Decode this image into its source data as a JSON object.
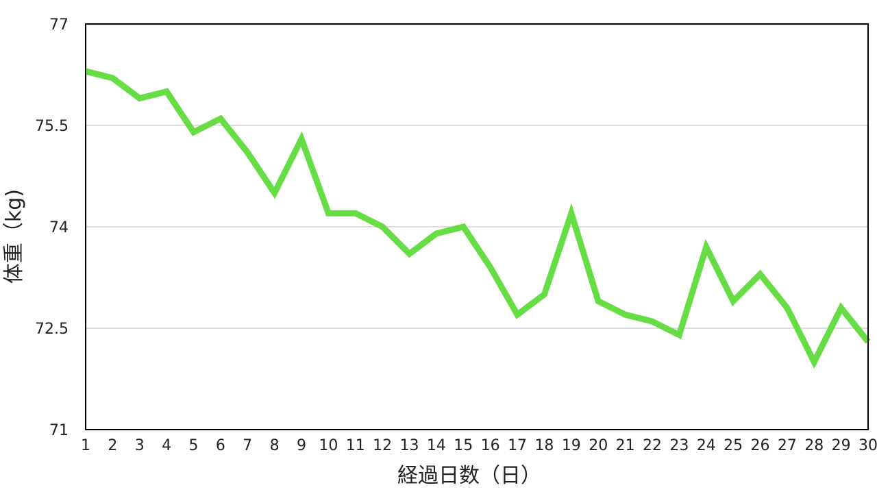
{
  "chart_data": {
    "type": "line",
    "title": "",
    "xlabel": "経過日数（日）",
    "ylabel": "体重（kg)",
    "x": [
      1,
      2,
      3,
      4,
      5,
      6,
      7,
      8,
      9,
      10,
      11,
      12,
      13,
      14,
      15,
      16,
      17,
      18,
      19,
      20,
      21,
      22,
      23,
      24,
      25,
      26,
      27,
      28,
      29,
      30
    ],
    "x_tick_labels": [
      "1",
      "2",
      "3",
      "4",
      "5",
      "6",
      "7",
      "8",
      "9",
      "10",
      "11",
      "12",
      "13",
      "14",
      "15",
      "16",
      "17",
      "18",
      "19",
      "20",
      "21",
      "22",
      "23",
      "24",
      "25",
      "26",
      "27",
      "28",
      "29",
      "30"
    ],
    "ylim": [
      71,
      77
    ],
    "y_ticks": [
      71,
      72.5,
      74,
      75.5,
      77
    ],
    "y_tick_labels": [
      "71",
      "72.5",
      "74",
      "75.5",
      "77"
    ],
    "grid": "horizontal",
    "legend": "none",
    "series": [
      {
        "color": "#66dd44",
        "values": [
          76.3,
          76.2,
          75.9,
          76.0,
          75.4,
          75.6,
          75.1,
          74.5,
          75.3,
          74.2,
          74.2,
          74.0,
          73.6,
          73.9,
          74.0,
          73.4,
          72.7,
          73.0,
          74.2,
          72.9,
          72.7,
          72.6,
          72.4,
          73.7,
          72.9,
          73.3,
          72.8,
          72.0,
          72.8,
          72.3
        ]
      }
    ],
    "colors": {
      "grid": "#d4d4d4",
      "axis": "#000000",
      "text": "#222222"
    }
  }
}
